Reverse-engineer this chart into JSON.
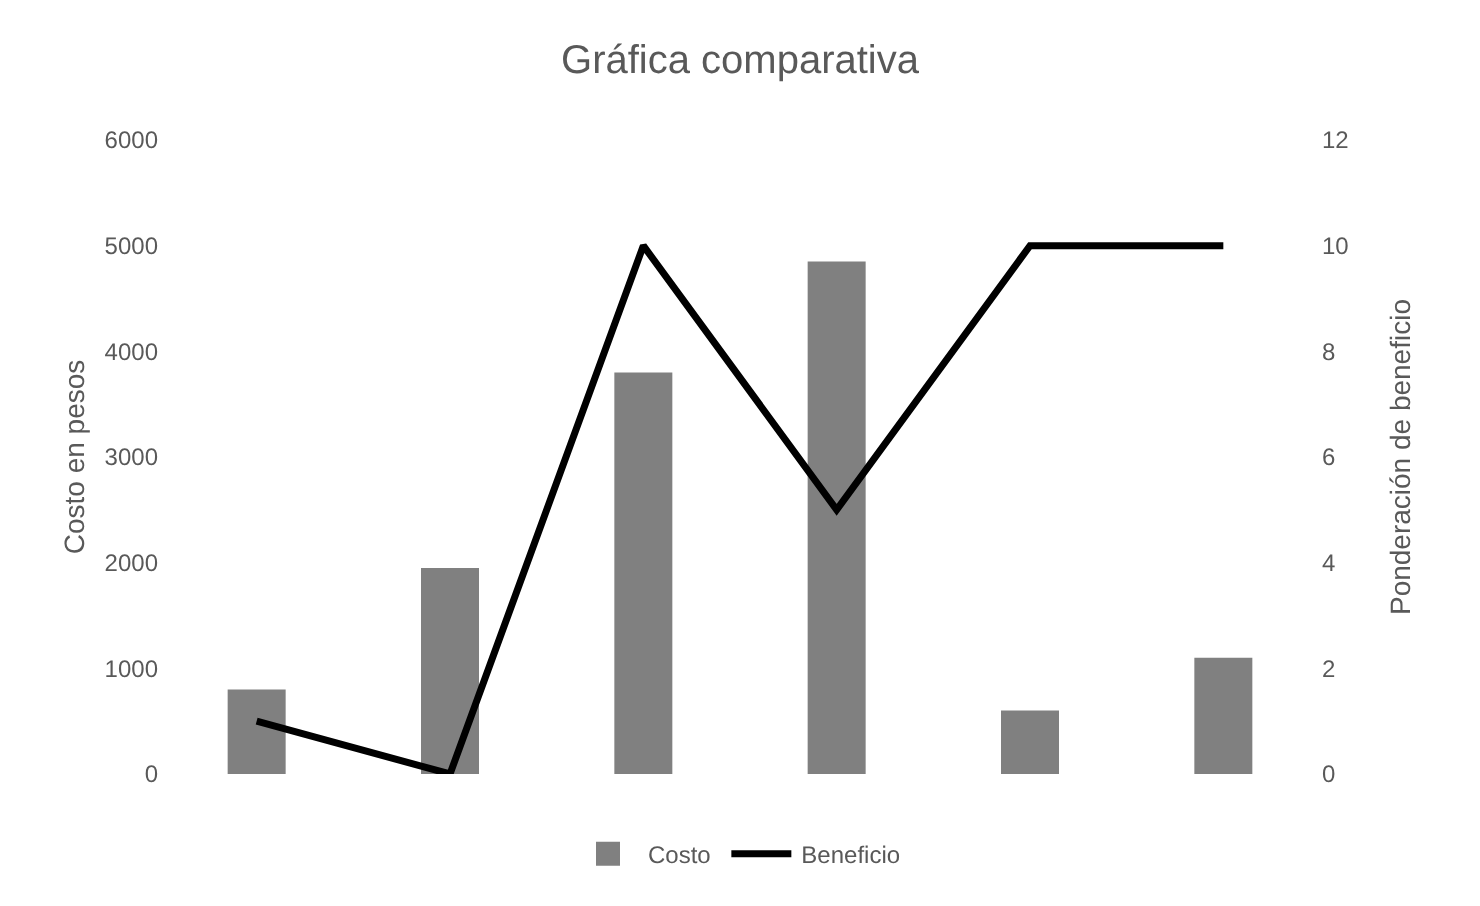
{
  "chart_data": {
    "type": "bar",
    "title": "Gráfica comparativa",
    "ylabel": "Costo en pesos",
    "y2label": "Ponderación de beneficio",
    "categories": [
      null,
      null,
      null,
      null,
      null,
      null
    ],
    "series": [
      {
        "name": "Costo",
        "color": "#808080",
        "values": [
          800,
          1950,
          3800,
          4850,
          600,
          1100
        ]
      },
      {
        "name": "Beneficio",
        "type": "line",
        "axis": "y2",
        "color": "#000000",
        "values": [
          1,
          0,
          10,
          5,
          10,
          10
        ]
      }
    ],
    "ylim": [
      0,
      6000
    ],
    "yticks": [
      0,
      1000,
      2000,
      3000,
      4000,
      5000,
      6000
    ],
    "y2lim": [
      0,
      12
    ],
    "y2ticks": [
      0,
      2,
      4,
      6,
      8,
      10,
      12
    ],
    "grid": false,
    "legend": "bottom",
    "marker": "none",
    "line_style": "solid"
  }
}
